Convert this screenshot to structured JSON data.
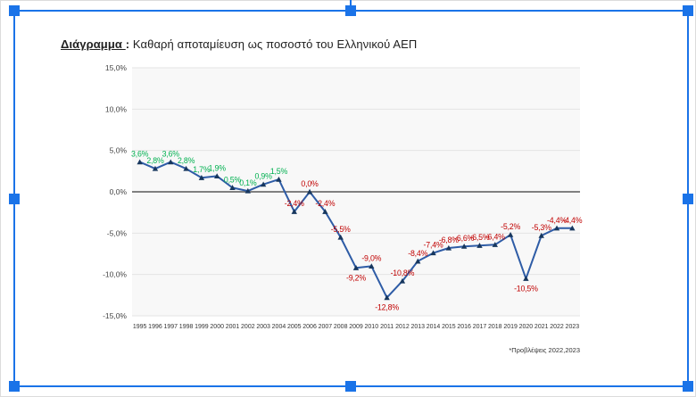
{
  "title": {
    "prefix": "Διάγραμμα ",
    "colon": ":",
    "text": " Καθαρή αποταμίευση ως ποσοστό του Ελληνικού ΑΕΠ"
  },
  "footnote": "*Προβλέψεις 2022,2023",
  "selection": {
    "handle_color": "#1a73e8"
  },
  "chart_data": {
    "type": "line",
    "title": "Καθαρή αποταμίευση ως ποσοστό του Ελληνικού ΑΕΠ",
    "xlabel": "",
    "ylabel": "",
    "x": [
      1995,
      1996,
      1997,
      1998,
      1999,
      2000,
      2001,
      2002,
      2003,
      2004,
      2005,
      2006,
      2007,
      2008,
      2009,
      2010,
      2011,
      2012,
      2013,
      2014,
      2015,
      2016,
      2017,
      2018,
      2019,
      2020,
      2021,
      2022,
      2023
    ],
    "values": [
      3.6,
      2.8,
      3.6,
      2.8,
      1.7,
      1.9,
      0.5,
      0.1,
      0.9,
      1.5,
      -2.4,
      0.0,
      -2.4,
      -5.5,
      -9.2,
      -9.0,
      -12.8,
      -10.8,
      -8.4,
      -7.4,
      -6.8,
      -6.6,
      -6.5,
      -6.4,
      -5.2,
      -10.5,
      -5.3,
      -4.4,
      -4.4
    ],
    "labels": [
      "3,6%",
      "2,8%",
      "3,6%",
      "2,8%",
      "1,7%",
      "1,9%",
      "0,5%",
      "0,1%",
      "0,9%",
      "1,5%",
      "-2,4%",
      "0,0%",
      "-2,4%",
      "-5,5%",
      "-9,2%",
      "-9,0%",
      "-12,8%",
      "-10,8%",
      "-8,4%",
      "-7,4%",
      "-6,8%",
      "-6,6%",
      "-6,5%",
      "-6,4%",
      "-5,2%",
      "-10,5%",
      "-5,3%",
      "-4,4%",
      "-4,4%"
    ],
    "ylim": [
      -15,
      15
    ],
    "ytick_step": 5,
    "ytick_labels": [
      "15,0%",
      "10,0%",
      "5,0%",
      "0,0%",
      "-5,0%",
      "-10,0%",
      "-15,0%"
    ],
    "grid": true,
    "legend": "none",
    "labels_below_years": [
      2009,
      2011,
      2020
    ],
    "line_color": "#2e5ca6",
    "marker_color": "#17375e",
    "positive_label_color": "#00b050",
    "negative_label_color": "#c00000",
    "plot_bg_color": "#f8f8f8",
    "gridline_color": "#e3e3e3",
    "zero_line_color": "#595959"
  }
}
